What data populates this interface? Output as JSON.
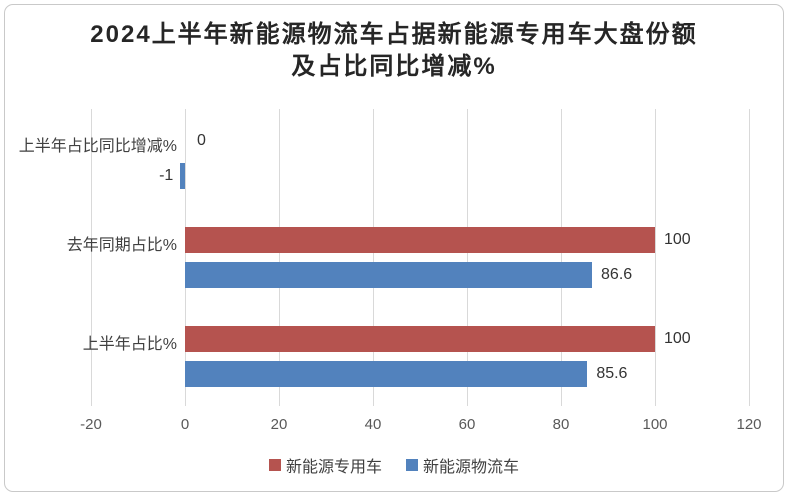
{
  "chart_data": {
    "type": "bar",
    "orientation": "horizontal",
    "title": "2024上半年新能源物流车占据新能源专用车大盘份额及占比同比增减%",
    "title_lines": [
      "2024上半年新能源物流车占据新能源专用车大盘份额",
      "及占比同比增减%"
    ],
    "categories": [
      "上半年占比同比增减%",
      "去年同期占比%",
      "上半年占比%"
    ],
    "series": [
      {
        "name": "新能源专用车",
        "color": "#B5534F",
        "values": [
          0,
          100,
          100
        ],
        "labels": [
          "0",
          "100",
          "100"
        ]
      },
      {
        "name": "新能源物流车",
        "color": "#5282BD",
        "values": [
          -1,
          86.6,
          85.6
        ],
        "labels": [
          "-1",
          "86.6",
          "85.6"
        ]
      }
    ],
    "x_ticks": [
      -20,
      0,
      20,
      40,
      60,
      80,
      100,
      120
    ],
    "xlim": [
      -20,
      120
    ],
    "grid": true,
    "legend_position": "bottom",
    "colors": {
      "gridline": "#D9D9D9",
      "title_text": "#262626",
      "axis_text": "#595959",
      "label_text": "#333333",
      "frame_border": "#C9C9C9",
      "background": "#FFFFFF"
    }
  }
}
